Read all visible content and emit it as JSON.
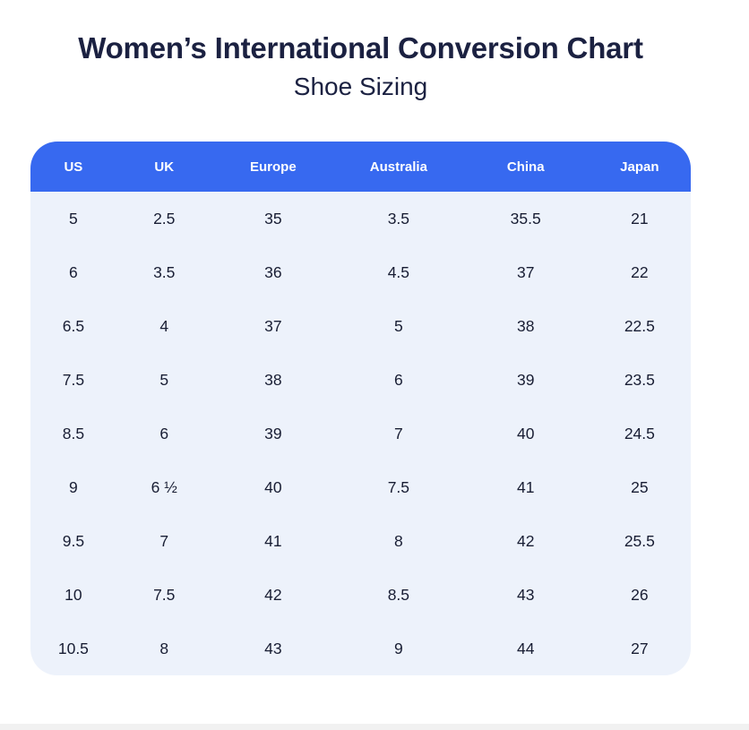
{
  "page": {
    "title": "Women’s International Conversion Chart",
    "subtitle": "Shoe Sizing"
  },
  "chart_data": {
    "type": "table",
    "title": "Women’s International Conversion Chart",
    "subtitle": "Shoe Sizing",
    "columns": [
      "US",
      "UK",
      "Europe",
      "Australia",
      "China",
      "Japan"
    ],
    "column_width_pct": [
      13,
      14.5,
      18.5,
      19.5,
      19,
      15.5
    ],
    "rows": [
      [
        "5",
        "2.5",
        "35",
        "3.5",
        "35.5",
        "21"
      ],
      [
        "6",
        "3.5",
        "36",
        "4.5",
        "37",
        "22"
      ],
      [
        "6.5",
        "4",
        "37",
        "5",
        "38",
        "22.5"
      ],
      [
        "7.5",
        "5",
        "38",
        "6",
        "39",
        "23.5"
      ],
      [
        "8.5",
        "6",
        "39",
        "7",
        "40",
        "24.5"
      ],
      [
        "9",
        "6 ½",
        "40",
        "7.5",
        "41",
        "25"
      ],
      [
        "9.5",
        "7",
        "41",
        "8",
        "42",
        "25.5"
      ],
      [
        "10",
        "7.5",
        "42",
        "8.5",
        "43",
        "26"
      ],
      [
        "10.5",
        "8",
        "43",
        "9",
        "44",
        "27"
      ]
    ]
  },
  "colors": {
    "header_bg": "#3769f0",
    "header_text": "#ffffff",
    "card_bg": "#edf2fb",
    "cell_text": "#181d33",
    "title_text": "#1b2141",
    "strip_bg": "#f1f1f1",
    "page_bg": "#ffffff"
  }
}
